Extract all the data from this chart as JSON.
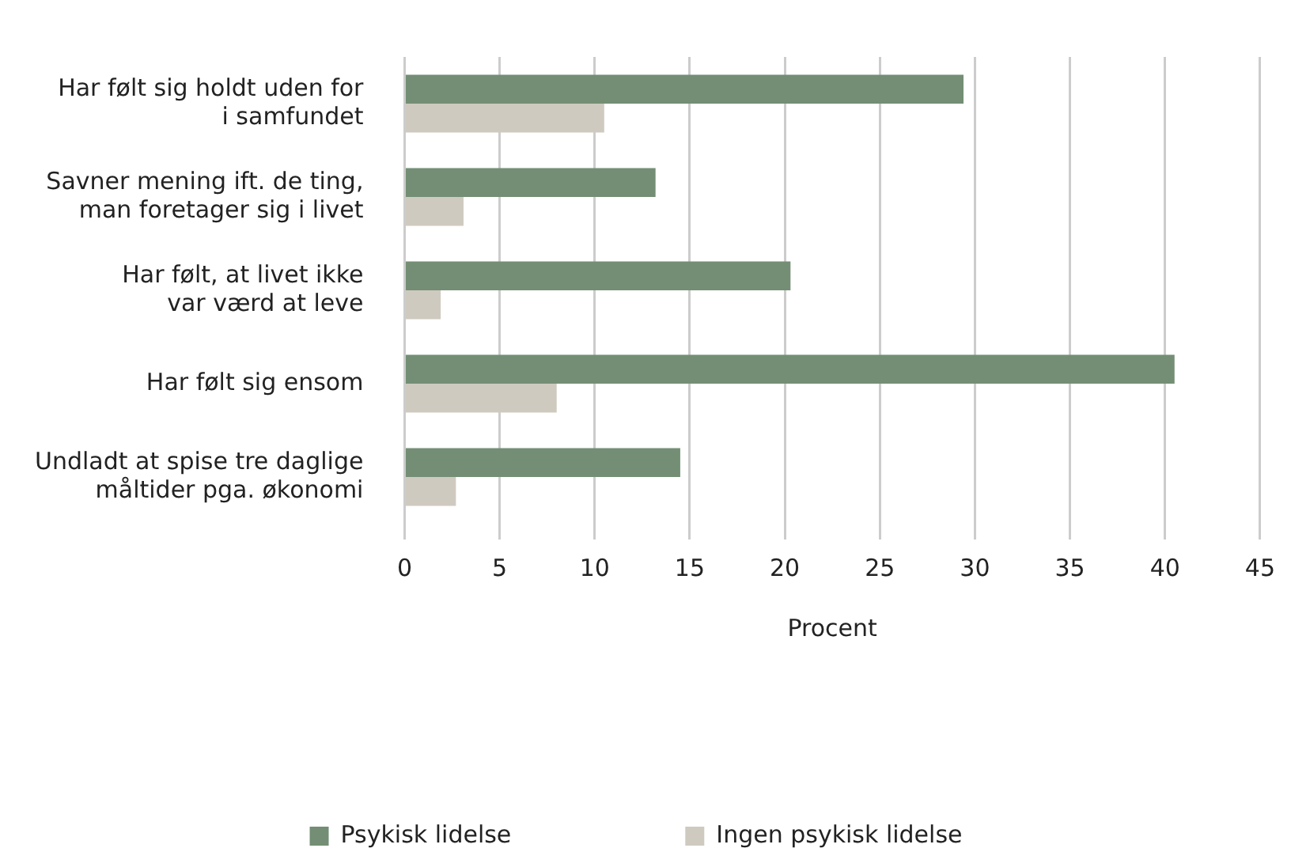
{
  "chart_data": {
    "type": "bar",
    "orientation": "horizontal",
    "xlabel": "Procent",
    "categories": [
      "Har følt sig holdt uden for\ni samfundet",
      "Savner mening ift. de ting,\nman foretager sig i livet",
      "Har følt, at livet ikke\nvar værd at leve",
      "Har følt sig ensom",
      "Undladt at spise tre daglige\nmåltider pga. økonomi"
    ],
    "series": [
      {
        "name": "Psykisk lidelse",
        "color": "#738e74",
        "values": [
          29.4,
          13.2,
          20.3,
          40.5,
          14.5
        ]
      },
      {
        "name": "Ingen psykisk lidelse",
        "color": "#cfcac0",
        "values": [
          10.5,
          3.1,
          1.9,
          8.0,
          2.7
        ]
      }
    ],
    "xlim": [
      0,
      45
    ],
    "xticks": [
      0,
      5,
      10,
      15,
      20,
      25,
      30,
      35,
      40,
      45
    ],
    "grid": "x",
    "legend": "bottom"
  }
}
